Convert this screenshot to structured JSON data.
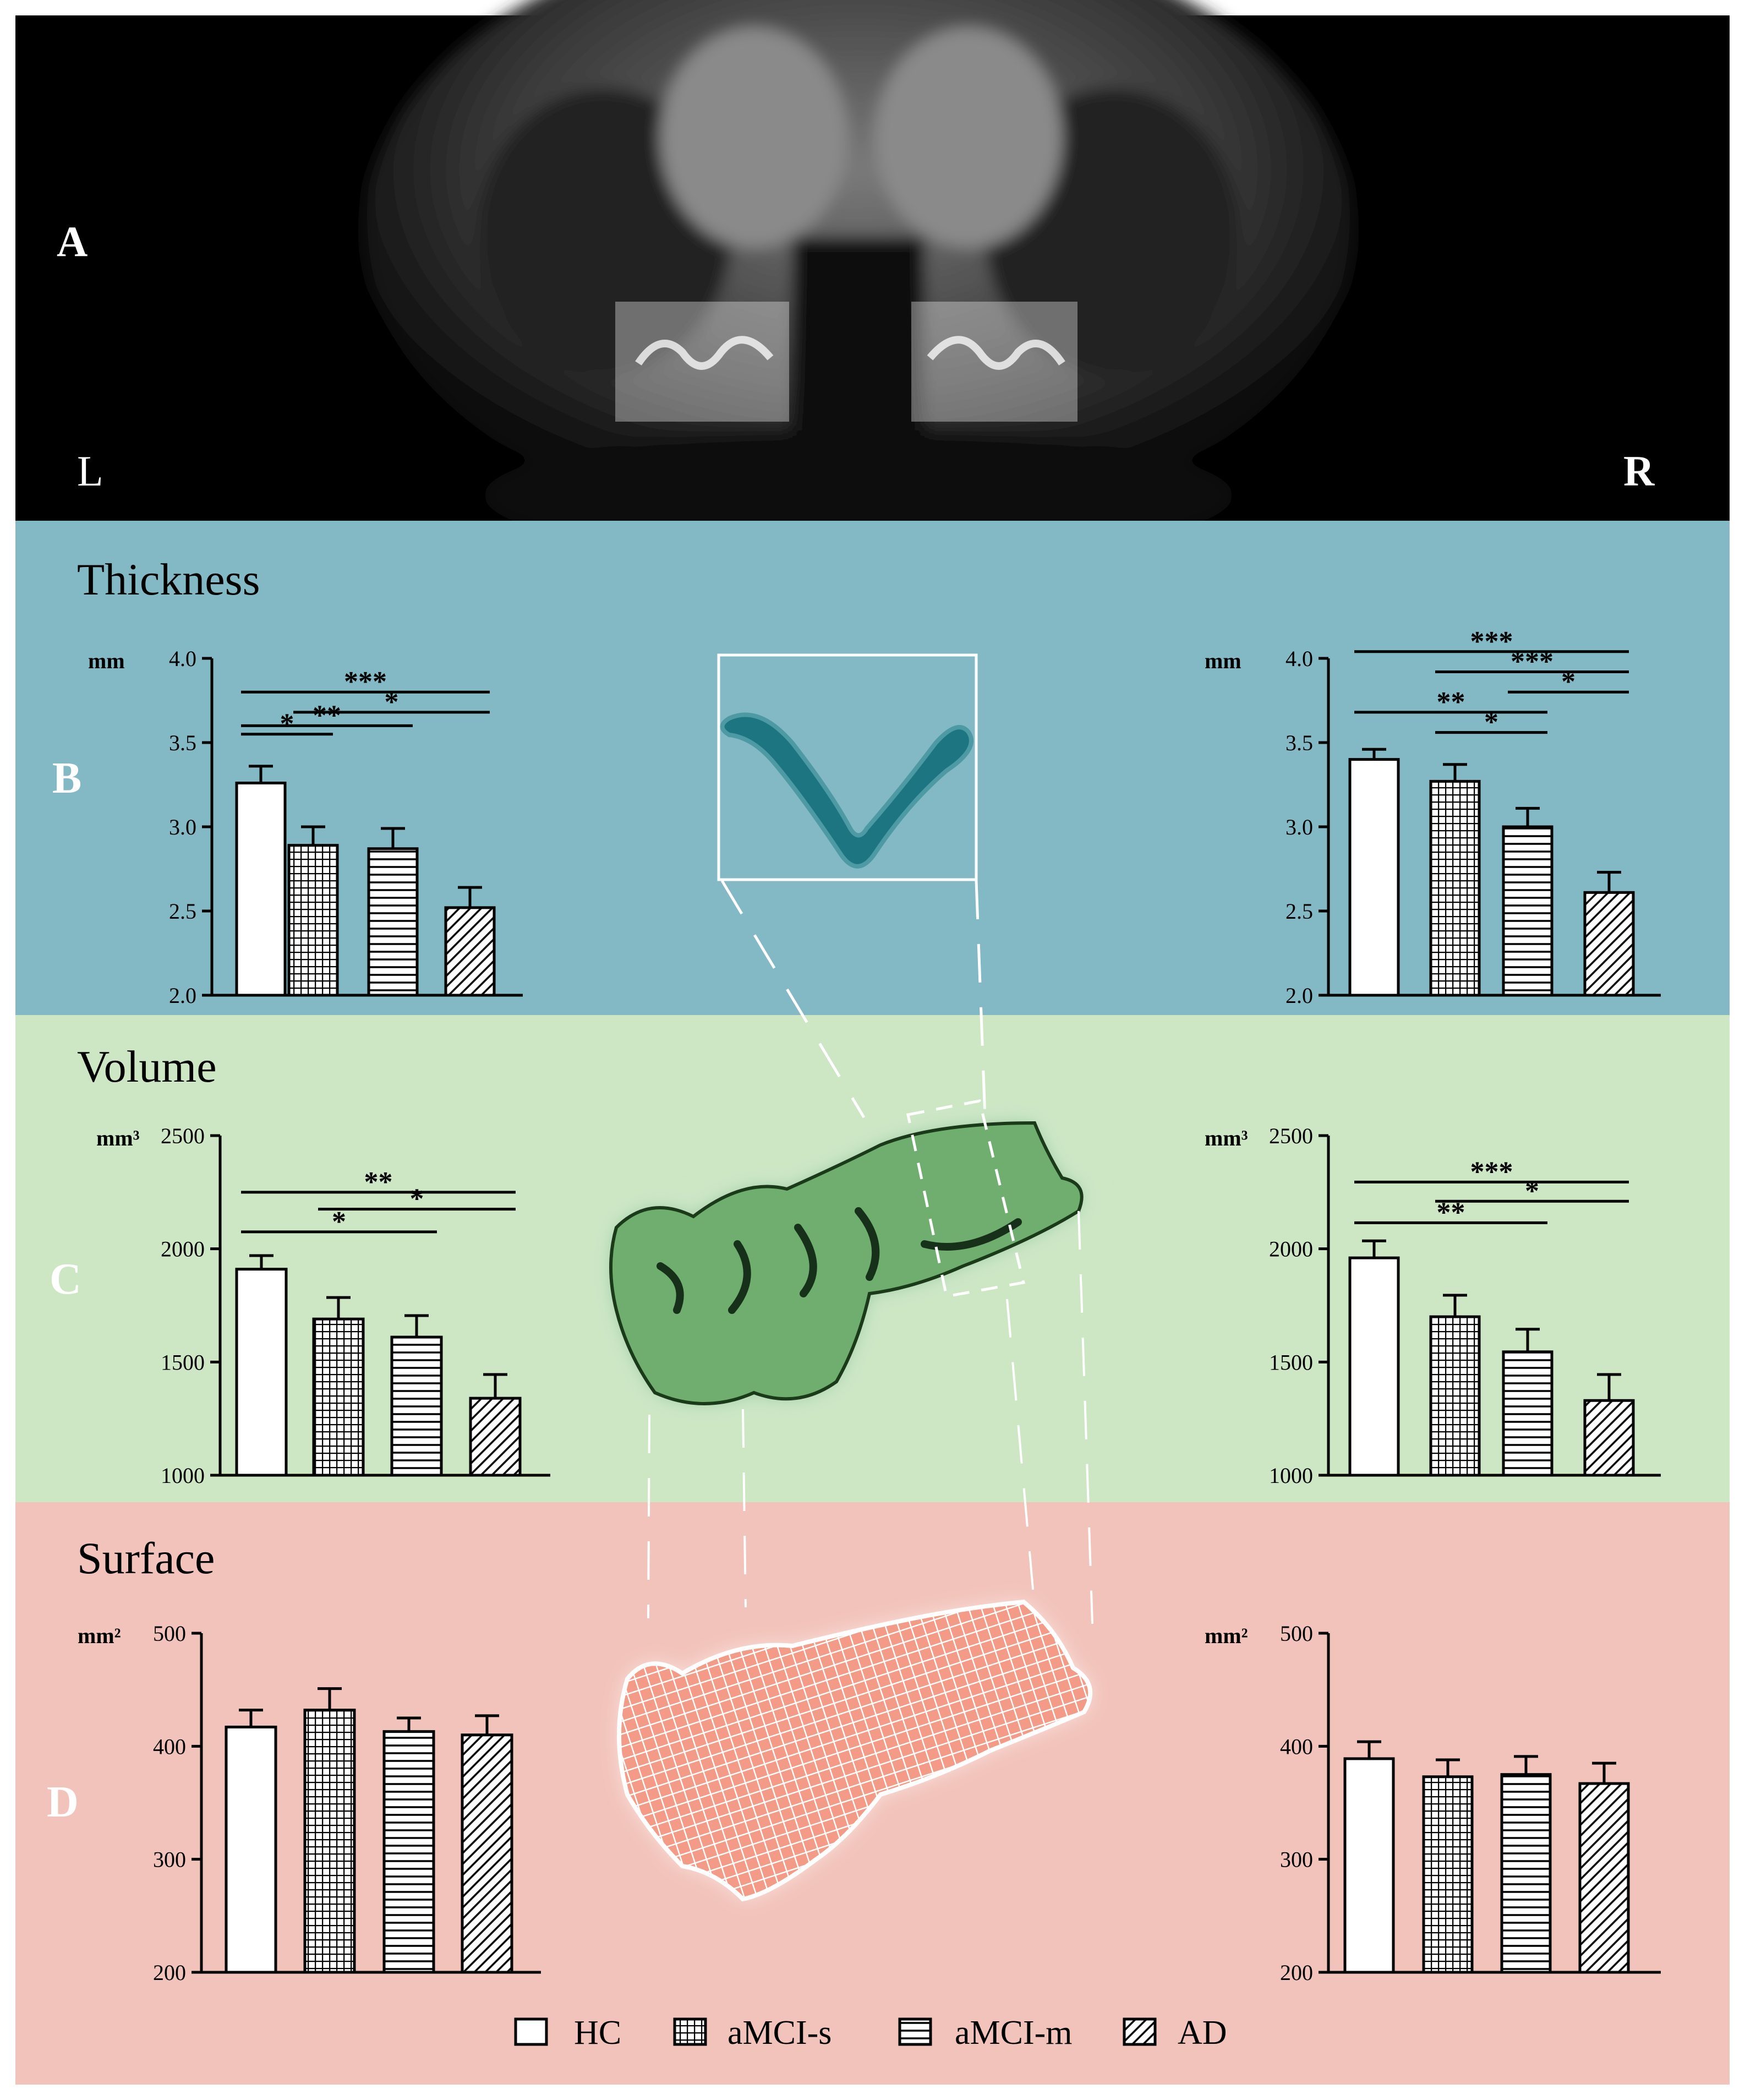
{
  "panels": {
    "a": "A",
    "b": "B",
    "c": "C",
    "d": "D",
    "left": "L",
    "right": "R"
  },
  "sections": {
    "thickness": "Thickness",
    "volume": "Volume",
    "surface": "Surface"
  },
  "units": {
    "thickness": "mm",
    "volume": "mm³",
    "surface": "mm²"
  },
  "legend": [
    {
      "label": "HC",
      "pattern": "none"
    },
    {
      "label": "aMCI-s",
      "pattern": "grid"
    },
    {
      "label": "aMCI-m",
      "pattern": "hlines"
    },
    {
      "label": "AD",
      "pattern": "diag"
    }
  ],
  "colors": {
    "thickness_bg": "#83b9c4",
    "volume_bg": "#cde7c4",
    "surface_bg": "#f2c3ba",
    "subfield": "#1c7581",
    "hippo_green": "#6fae6e",
    "mesh": "#f39b86"
  },
  "chart_data": [
    {
      "id": "thickness-left",
      "type": "bar",
      "unit": "mm",
      "categories": [
        "HC",
        "aMCI-s",
        "aMCI-m",
        "AD"
      ],
      "values": [
        3.26,
        2.89,
        2.87,
        2.52
      ],
      "errors": [
        0.1,
        0.11,
        0.12,
        0.12
      ],
      "ylim": [
        2.0,
        4.0
      ],
      "yticks": [
        "2.0",
        "2.5",
        "3.0",
        "3.5",
        "4.0"
      ],
      "significance": [
        {
          "from": 0,
          "to": 1,
          "level": 3.55,
          "label": "*"
        },
        {
          "from": 0,
          "to": 2,
          "level": 3.6,
          "label": "**"
        },
        {
          "from": 1,
          "to": 3,
          "level": 3.68,
          "label": "*"
        },
        {
          "from": 0,
          "to": 3,
          "level": 3.8,
          "label": "***"
        }
      ]
    },
    {
      "id": "thickness-right",
      "type": "bar",
      "unit": "mm",
      "categories": [
        "HC",
        "aMCI-s",
        "aMCI-m",
        "AD"
      ],
      "values": [
        3.4,
        3.27,
        3.0,
        2.61
      ],
      "errors": [
        0.06,
        0.1,
        0.11,
        0.12
      ],
      "ylim": [
        2.0,
        4.0
      ],
      "yticks": [
        "2.0",
        "2.5",
        "3.0",
        "3.5",
        "4.0"
      ],
      "significance": [
        {
          "from": 1,
          "to": 2,
          "level": 3.56,
          "label": "*"
        },
        {
          "from": 0,
          "to": 2,
          "level": 3.68,
          "label": "**"
        },
        {
          "from": 2,
          "to": 3,
          "level": 3.8,
          "label": "*"
        },
        {
          "from": 1,
          "to": 3,
          "level": 3.92,
          "label": "***"
        },
        {
          "from": 0,
          "to": 3,
          "level": 4.04,
          "label": "***"
        }
      ]
    },
    {
      "id": "volume-left",
      "type": "bar",
      "unit": "mm³",
      "categories": [
        "HC",
        "aMCI-s",
        "aMCI-m",
        "AD"
      ],
      "values": [
        1910,
        1690,
        1610,
        1340
      ],
      "errors": [
        60,
        95,
        95,
        105
      ],
      "ylim": [
        1000,
        2500
      ],
      "yticks": [
        "1000",
        "1500",
        "2000",
        "2500"
      ],
      "significance": [
        {
          "from": 0,
          "to": 2,
          "level": 2075,
          "label": "*"
        },
        {
          "from": 1,
          "to": 3,
          "level": 2175,
          "label": "*"
        },
        {
          "from": 0,
          "to": 3,
          "level": 2250,
          "label": "**"
        }
      ]
    },
    {
      "id": "volume-right",
      "type": "bar",
      "unit": "mm³",
      "categories": [
        "HC",
        "aMCI-s",
        "aMCI-m",
        "AD"
      ],
      "values": [
        1960,
        1700,
        1545,
        1330
      ],
      "errors": [
        75,
        95,
        100,
        115
      ],
      "ylim": [
        1000,
        2500
      ],
      "yticks": [
        "1000",
        "1500",
        "2000",
        "2500"
      ],
      "significance": [
        {
          "from": 0,
          "to": 2,
          "level": 2115,
          "label": "**"
        },
        {
          "from": 1,
          "to": 3,
          "level": 2210,
          "label": "*"
        },
        {
          "from": 0,
          "to": 3,
          "level": 2295,
          "label": "***"
        }
      ]
    },
    {
      "id": "surface-left",
      "type": "bar",
      "unit": "mm²",
      "categories": [
        "HC",
        "aMCI-s",
        "aMCI-m",
        "AD"
      ],
      "values": [
        417,
        432,
        413,
        410
      ],
      "errors": [
        15,
        19,
        12,
        17
      ],
      "ylim": [
        200,
        500
      ],
      "yticks": [
        "200",
        "300",
        "400",
        "500"
      ],
      "significance": []
    },
    {
      "id": "surface-right",
      "type": "bar",
      "unit": "mm²",
      "categories": [
        "HC",
        "aMCI-s",
        "aMCI-m",
        "AD"
      ],
      "values": [
        389,
        373,
        375,
        367
      ],
      "errors": [
        15,
        15,
        16,
        18
      ],
      "ylim": [
        200,
        500
      ],
      "yticks": [
        "200",
        "300",
        "400",
        "500"
      ],
      "significance": []
    }
  ]
}
